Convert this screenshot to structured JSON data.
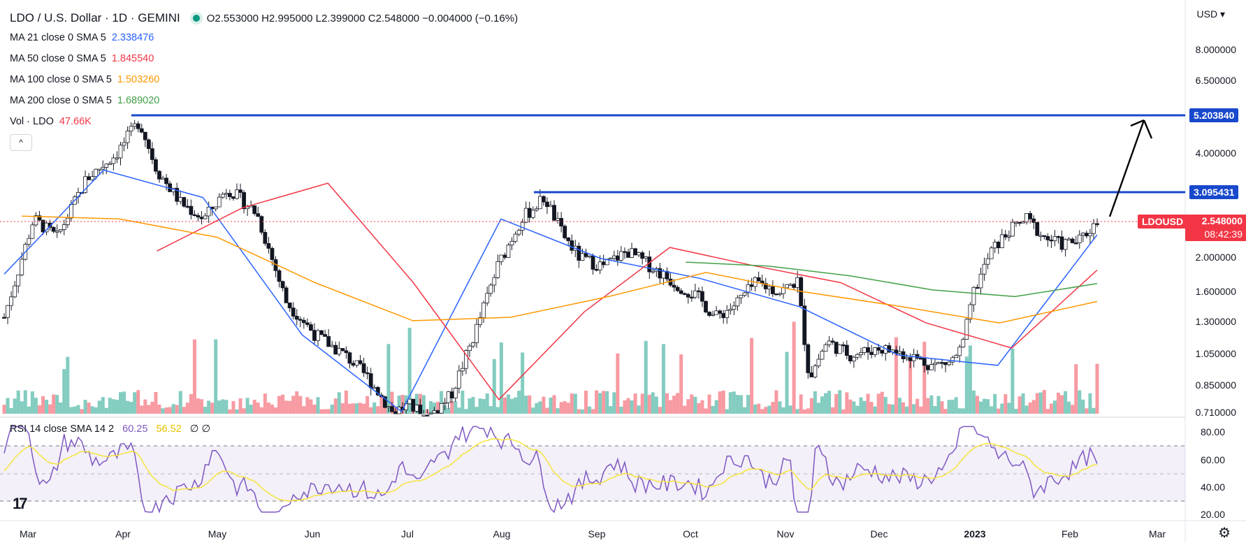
{
  "header": {
    "title": "LDO / U.S. Dollar · 1D · GEMINI",
    "ohlc": "O2.553000  H2.995000  L2.399000  C2.548000  −0.004000 (−0.16%)",
    "currency": "USD ▾"
  },
  "indicators": [
    {
      "label": "MA 21 close 0 SMA 5",
      "value": "2.338476",
      "color": "#2962ff"
    },
    {
      "label": "MA 50 close 0 SMA 5",
      "value": "1.845540",
      "color": "#f23645"
    },
    {
      "label": "MA 100 close 0 SMA 5",
      "value": "1.503260",
      "color": "#ff9800"
    },
    {
      "label": "MA 200 close 0 SMA 5",
      "value": "1.689020",
      "color": "#43a047"
    },
    {
      "label": "Vol · LDO",
      "value": "47.66K",
      "color": "#f23645"
    }
  ],
  "collapse_icon": "^",
  "rsi_legend": {
    "label": "RSI 14 close SMA 14 2",
    "value1": "60.25",
    "value2": "56.52",
    "value3": "∅ ∅"
  },
  "price_axis": [
    "8.000000",
    "6.500000",
    "4.000000",
    "2.000000",
    "1.600000",
    "1.300000",
    "1.050000",
    "0.850000",
    "0.710000"
  ],
  "price_tags": {
    "level_high": "5.203840",
    "level_mid": "3.095431",
    "symbol": "LDOUSD",
    "last_price": "2.548000",
    "countdown": "08:42:39"
  },
  "rsi_axis": [
    "80.00",
    "60.00",
    "40.00",
    "20.00"
  ],
  "time_axis": [
    "Mar",
    "Apr",
    "May",
    "Jun",
    "Jul",
    "Aug",
    "Sep",
    "Oct",
    "Nov",
    "Dec",
    "2023",
    "Feb",
    "Mar"
  ],
  "colors": {
    "up": "#089981",
    "down": "#f23645",
    "level": "#1848cc",
    "rsi": "#7e57c2",
    "rsi_ma": "#f7e33b"
  },
  "chart_data": {
    "type": "line",
    "series": [
      {
        "name": "MA 21 close 0 SMA 5",
        "values": [
          1.8,
          3.6,
          3.0,
          1.2,
          0.72,
          2.6,
          2.0,
          1.75,
          1.45,
          1.05,
          0.98,
          2.34
        ]
      },
      {
        "name": "MA 50 close 0 SMA 5",
        "values": [
          2.1,
          2.8,
          3.3,
          1.7,
          0.78,
          1.4,
          2.15,
          1.9,
          1.7,
          1.3,
          1.1,
          1.85
        ]
      },
      {
        "name": "MA 100 close 0 SMA 5",
        "values": [
          2.65,
          2.6,
          2.3,
          1.7,
          1.32,
          1.35,
          1.55,
          1.82,
          1.6,
          1.45,
          1.3,
          1.5
        ]
      },
      {
        "name": "MA 200 close 0 SMA 5",
        "values": [
          1.95,
          1.9,
          1.78,
          1.62,
          1.55,
          1.69
        ]
      }
    ]
  }
}
